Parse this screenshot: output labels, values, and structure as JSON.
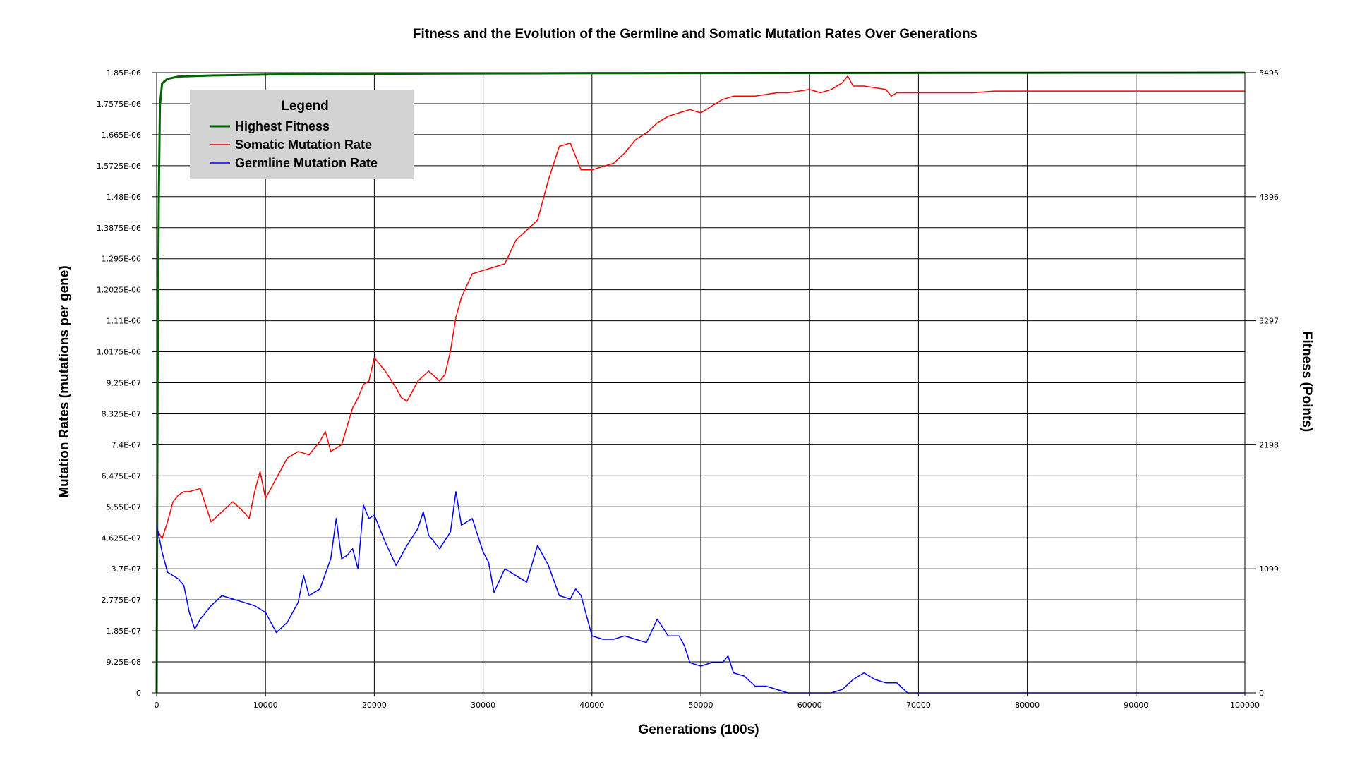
{
  "chart_data": {
    "type": "line",
    "title": "Fitness and the Evolution of the Germline and Somatic Mutation Rates Over Generations",
    "xlabel": "Generations (100s)",
    "ylabel": "Mutation Rates (mutations per gene)",
    "y2label": "Fitness (Points)",
    "xlim": [
      0,
      100000
    ],
    "ylim": [
      0,
      1.85e-06
    ],
    "y2lim": [
      0,
      5495
    ],
    "x_ticks": [
      "0",
      "10000",
      "20000",
      "30000",
      "40000",
      "50000",
      "60000",
      "70000",
      "80000",
      "90000",
      "100000"
    ],
    "y_ticks": [
      "0",
      "9.25E-08",
      "1.85E-07",
      "2.775E-07",
      "3.7E-07",
      "4.625E-07",
      "5.55E-07",
      "6.475E-07",
      "7.4E-07",
      "8.325E-07",
      "9.25E-07",
      "1.0175E-06",
      "1.11E-06",
      "1.2025E-06",
      "1.295E-06",
      "1.3875E-06",
      "1.48E-06",
      "1.5725E-06",
      "1.665E-06",
      "1.7575E-06",
      "1.85E-06"
    ],
    "y2_ticks": [
      "0",
      "1099",
      "2198",
      "3297",
      "4396",
      "5495"
    ],
    "grid": true,
    "legend": {
      "title": "Legend",
      "placement": "top-left",
      "entries": [
        "Highest Fitness",
        "Somatic Mutation Rate",
        "Germline Mutation Rate"
      ]
    },
    "series": [
      {
        "name": "Highest Fitness",
        "axis": "right",
        "color": "#006400",
        "x": [
          0,
          100,
          200,
          300,
          500,
          1000,
          2000,
          5000,
          10000,
          20000,
          30000,
          40000,
          60000,
          80000,
          100000
        ],
        "values": [
          0,
          3000,
          4400,
          5200,
          5400,
          5440,
          5460,
          5470,
          5478,
          5485,
          5488,
          5490,
          5492,
          5494,
          5495
        ]
      },
      {
        "name": "Somatic Mutation Rate",
        "axis": "left",
        "color": "#ff0000",
        "x": [
          0,
          500,
          1000,
          1500,
          2000,
          2500,
          3000,
          4000,
          4500,
          5000,
          6000,
          7000,
          8000,
          8500,
          9000,
          9500,
          10000,
          11000,
          12000,
          13000,
          14000,
          15000,
          15500,
          16000,
          17000,
          18000,
          18500,
          19000,
          19500,
          20000,
          21000,
          22000,
          22500,
          23000,
          24000,
          25000,
          26000,
          26500,
          27000,
          27500,
          28000,
          29000,
          30000,
          31000,
          32000,
          33000,
          34000,
          35000,
          36000,
          37000,
          38000,
          38500,
          39000,
          40000,
          41000,
          42000,
          43000,
          44000,
          45000,
          46000,
          47000,
          48000,
          49000,
          50000,
          51000,
          52000,
          53000,
          54000,
          55000,
          57000,
          58000,
          60000,
          61000,
          62000,
          63000,
          63500,
          64000,
          65000,
          67000,
          67500,
          68000,
          70000,
          75000,
          77000,
          80000,
          90000,
          100000
        ],
        "values": [
          4.9e-07,
          4.6e-07,
          5.1e-07,
          5.7e-07,
          5.9e-07,
          6e-07,
          6e-07,
          6.1e-07,
          5.6e-07,
          5.1e-07,
          5.4e-07,
          5.7e-07,
          5.4e-07,
          5.2e-07,
          6e-07,
          6.6e-07,
          5.8e-07,
          6.4e-07,
          7e-07,
          7.2e-07,
          7.1e-07,
          7.5e-07,
          7.8e-07,
          7.2e-07,
          7.4e-07,
          8.5e-07,
          8.8e-07,
          9.2e-07,
          9.3e-07,
          1e-06,
          9.6e-07,
          9.1e-07,
          8.8e-07,
          8.7e-07,
          9.3e-07,
          9.6e-07,
          9.3e-07,
          9.5e-07,
          1.02e-06,
          1.12e-06,
          1.18e-06,
          1.25e-06,
          1.26e-06,
          1.27e-06,
          1.28e-06,
          1.35e-06,
          1.38e-06,
          1.41e-06,
          1.53e-06,
          1.63e-06,
          1.64e-06,
          1.6e-06,
          1.56e-06,
          1.56e-06,
          1.57e-06,
          1.58e-06,
          1.61e-06,
          1.65e-06,
          1.67e-06,
          1.7e-06,
          1.72e-06,
          1.73e-06,
          1.74e-06,
          1.73e-06,
          1.75e-06,
          1.77e-06,
          1.78e-06,
          1.78e-06,
          1.78e-06,
          1.79e-06,
          1.79e-06,
          1.8e-06,
          1.79e-06,
          1.8e-06,
          1.82e-06,
          1.84e-06,
          1.81e-06,
          1.81e-06,
          1.8e-06,
          1.78e-06,
          1.79e-06,
          1.79e-06,
          1.79e-06,
          1.795e-06,
          1.795e-06,
          1.795e-06,
          1.795e-06
        ]
      },
      {
        "name": "Germline Mutation Rate",
        "axis": "left",
        "color": "#0000ff",
        "x": [
          0,
          500,
          1000,
          2000,
          2500,
          3000,
          3500,
          4000,
          5000,
          6000,
          7000,
          8000,
          9000,
          10000,
          11000,
          12000,
          13000,
          13500,
          14000,
          15000,
          16000,
          16500,
          17000,
          17500,
          18000,
          18500,
          19000,
          19500,
          20000,
          21000,
          22000,
          23000,
          24000,
          24500,
          25000,
          26000,
          27000,
          27500,
          28000,
          29000,
          30000,
          30500,
          31000,
          32000,
          33000,
          34000,
          35000,
          36000,
          37000,
          38000,
          38500,
          39000,
          40000,
          41000,
          42000,
          43000,
          44000,
          45000,
          46000,
          47000,
          48000,
          48500,
          49000,
          50000,
          51000,
          52000,
          52500,
          53000,
          54000,
          55000,
          56000,
          58000,
          59000,
          60000,
          62000,
          63000,
          64000,
          65000,
          66000,
          67000,
          68000,
          69000,
          70000,
          75000,
          80000,
          90000,
          100000
        ],
        "values": [
          5e-07,
          4.2e-07,
          3.6e-07,
          3.4e-07,
          3.2e-07,
          2.4e-07,
          1.9e-07,
          2.2e-07,
          2.6e-07,
          2.9e-07,
          2.8e-07,
          2.7e-07,
          2.6e-07,
          2.4e-07,
          1.8e-07,
          2.1e-07,
          2.7e-07,
          3.5e-07,
          2.9e-07,
          3.1e-07,
          4e-07,
          5.2e-07,
          4e-07,
          4.1e-07,
          4.3e-07,
          3.7e-07,
          5.6e-07,
          5.2e-07,
          5.3e-07,
          4.5e-07,
          3.8e-07,
          4.4e-07,
          4.9e-07,
          5.4e-07,
          4.7e-07,
          4.3e-07,
          4.8e-07,
          6e-07,
          5e-07,
          5.2e-07,
          4.2e-07,
          3.9e-07,
          3e-07,
          3.7e-07,
          3.5e-07,
          3.3e-07,
          4.4e-07,
          3.8e-07,
          2.9e-07,
          2.8e-07,
          3.1e-07,
          2.9e-07,
          1.7e-07,
          1.6e-07,
          1.6e-07,
          1.7e-07,
          1.6e-07,
          1.5e-07,
          2.2e-07,
          1.7e-07,
          1.7e-07,
          1.4e-07,
          9e-08,
          8e-08,
          9e-08,
          9e-08,
          1.1e-07,
          6e-08,
          5e-08,
          2e-08,
          2e-08,
          0,
          0,
          0,
          0,
          1e-08,
          4e-08,
          6e-08,
          4e-08,
          3e-08,
          3e-08,
          0,
          0,
          0,
          0,
          0,
          0
        ]
      }
    ]
  }
}
